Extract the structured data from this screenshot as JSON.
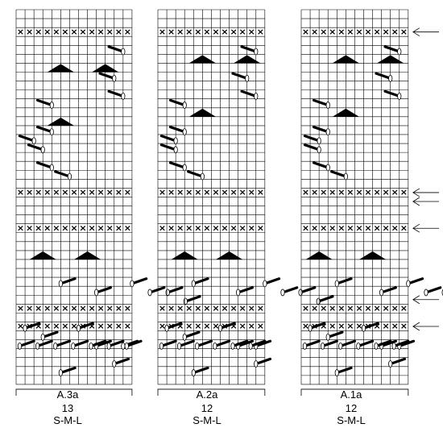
{
  "diagrams": [
    {
      "id": "a3a",
      "name": "A.3a",
      "stitches": "13",
      "sizes": "S-M-L",
      "cols": 13,
      "xrows": [
        2,
        20,
        24,
        33,
        35
      ],
      "wedges": [
        [
          6,
          5
        ],
        [
          12,
          5
        ],
        [
          6,
          10
        ],
        [
          27,
          3
        ],
        [
          27,
          8
        ]
      ],
      "ltr": [
        [
          35,
          1
        ],
        [
          36,
          3
        ],
        [
          30,
          5
        ],
        [
          40,
          5
        ],
        [
          35,
          7
        ],
        [
          31,
          9
        ],
        [
          37,
          9
        ],
        [
          39,
          11
        ],
        [
          37,
          12
        ],
        [
          30,
          13
        ],
        [
          31,
          15
        ],
        [
          31,
          17
        ],
        [
          32,
          19
        ]
      ],
      "rtl": [
        [
          4,
          12
        ],
        [
          9,
          12
        ],
        [
          7,
          11
        ],
        [
          10,
          4
        ],
        [
          13,
          4
        ],
        [
          14,
          2
        ],
        [
          15,
          3
        ],
        [
          17,
          4
        ],
        [
          18,
          6
        ]
      ],
      "ribrow": 37
    },
    {
      "id": "a2a",
      "name": "A.2a",
      "stitches": "12",
      "sizes": "S-M-L",
      "cols": 12,
      "xrows": [
        2,
        20,
        24,
        33,
        35
      ],
      "wedges": [
        [
          5,
          5
        ],
        [
          11,
          5
        ],
        [
          5,
          10
        ],
        [
          27,
          3
        ],
        [
          27,
          8
        ]
      ],
      "ltr": [
        [
          35,
          1
        ],
        [
          36,
          3
        ],
        [
          30,
          4
        ],
        [
          40,
          4
        ],
        [
          35,
          7
        ],
        [
          31,
          9
        ],
        [
          37,
          9
        ],
        [
          39,
          11
        ],
        [
          37,
          11
        ],
        [
          30,
          12
        ],
        [
          31,
          14
        ],
        [
          31,
          16
        ],
        [
          32,
          18
        ]
      ],
      "rtl": [
        [
          4,
          11
        ],
        [
          9,
          11
        ],
        [
          7,
          10
        ],
        [
          10,
          3
        ],
        [
          13,
          3
        ],
        [
          14,
          2
        ],
        [
          15,
          2
        ],
        [
          17,
          3
        ],
        [
          18,
          5
        ]
      ],
      "ribrow": 37
    },
    {
      "id": "a1a",
      "name": "A.1a",
      "stitches": "12",
      "sizes": "S-M-L",
      "cols": 12,
      "xrows": [
        2,
        20,
        24,
        33,
        35
      ],
      "wedges": [
        [
          5,
          5
        ],
        [
          11,
          5
        ],
        [
          5,
          10
        ],
        [
          27,
          2
        ],
        [
          27,
          8
        ]
      ],
      "ltr": [
        [
          35,
          1
        ],
        [
          36,
          3
        ],
        [
          30,
          4
        ],
        [
          40,
          4
        ],
        [
          35,
          7
        ],
        [
          31,
          9
        ],
        [
          37,
          9
        ],
        [
          39,
          10
        ],
        [
          37,
          11
        ],
        [
          30,
          12
        ],
        [
          31,
          14
        ],
        [
          31,
          16
        ],
        [
          32,
          18
        ]
      ],
      "rtl": [
        [
          4,
          11
        ],
        [
          9,
          11
        ],
        [
          7,
          10
        ],
        [
          10,
          3
        ],
        [
          13,
          3
        ],
        [
          14,
          2
        ],
        [
          15,
          2
        ],
        [
          17,
          3
        ],
        [
          18,
          5
        ]
      ],
      "ribrow": 37
    }
  ],
  "arrow_rows": [
    2,
    20,
    21,
    24,
    32,
    35
  ]
}
